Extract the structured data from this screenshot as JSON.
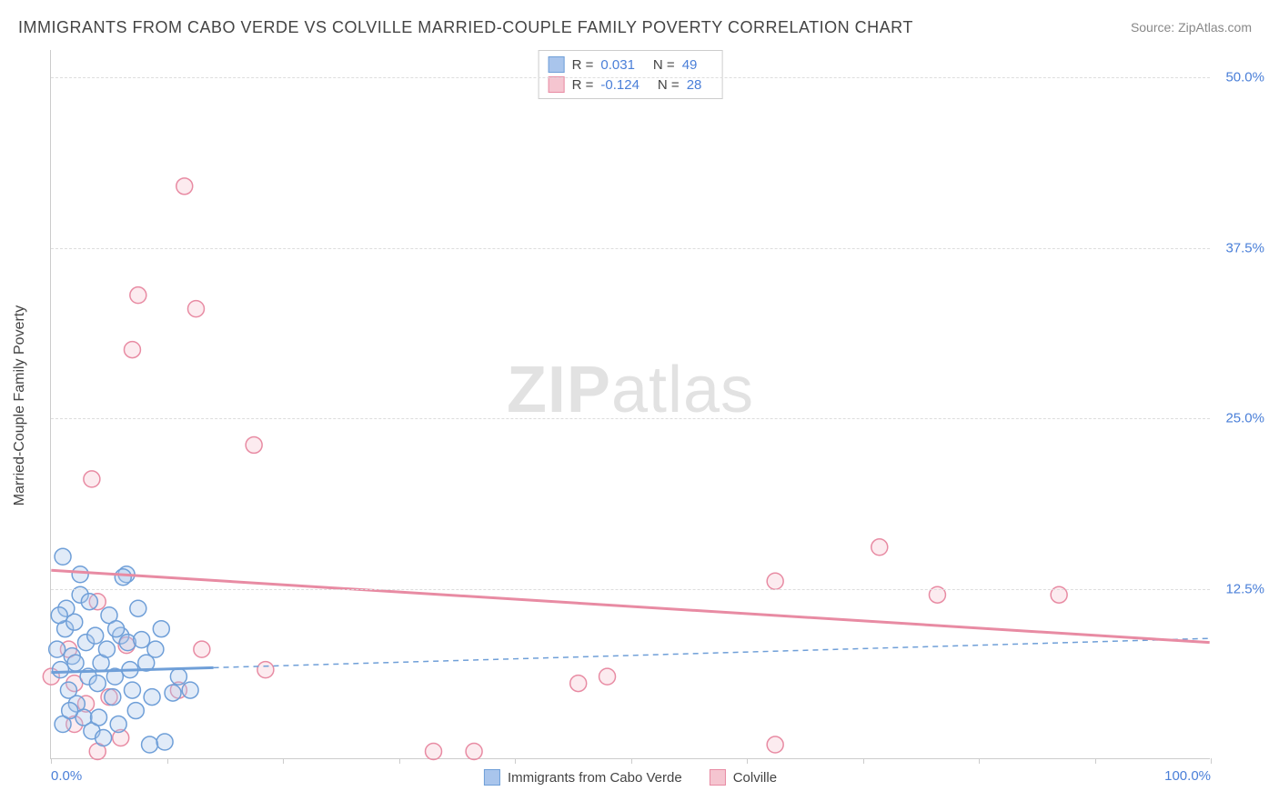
{
  "title": "IMMIGRANTS FROM CABO VERDE VS COLVILLE MARRIED-COUPLE FAMILY POVERTY CORRELATION CHART",
  "source": "Source: ZipAtlas.com",
  "watermark_bold": "ZIP",
  "watermark_light": "atlas",
  "y_axis_title": "Married-Couple Family Poverty",
  "chart": {
    "type": "scatter",
    "xlim": [
      0,
      100
    ],
    "ylim": [
      0,
      52
    ],
    "x_ticks": [
      0,
      10,
      20,
      30,
      40,
      50,
      60,
      70,
      80,
      90,
      100
    ],
    "x_tick_labels": {
      "0": "0.0%",
      "100": "100.0%"
    },
    "y_gridlines": [
      12.5,
      25.0,
      37.5,
      50.0
    ],
    "y_tick_labels": [
      "12.5%",
      "25.0%",
      "37.5%",
      "50.0%"
    ],
    "background_color": "#ffffff",
    "grid_color": "#dddddd",
    "axis_color": "#cccccc",
    "tick_label_color": "#4a7fd8",
    "title_fontsize": 18,
    "label_fontsize": 16,
    "marker_radius": 9,
    "marker_stroke_width": 1.5,
    "marker_fill_opacity": 0.35,
    "trend_line_width_solid": 3,
    "trend_line_width_dashed": 1.5,
    "series": [
      {
        "name": "Immigrants from Cabo Verde",
        "color_fill": "#a9c5ec",
        "color_stroke": "#6f9fd8",
        "R": "0.031",
        "N": "49",
        "trend": {
          "y_start": 6.3,
          "y_end": 8.8,
          "solid_until_x": 14,
          "dashed": true
        },
        "points": [
          [
            1.0,
            14.8
          ],
          [
            0.5,
            8.0
          ],
          [
            0.8,
            6.5
          ],
          [
            1.2,
            9.5
          ],
          [
            1.5,
            5.0
          ],
          [
            1.8,
            7.5
          ],
          [
            2.0,
            10.0
          ],
          [
            2.2,
            4.0
          ],
          [
            2.5,
            12.0
          ],
          [
            2.8,
            3.0
          ],
          [
            3.0,
            8.5
          ],
          [
            3.2,
            6.0
          ],
          [
            3.5,
            2.0
          ],
          [
            3.8,
            9.0
          ],
          [
            4.0,
            5.5
          ],
          [
            4.3,
            7.0
          ],
          [
            4.5,
            1.5
          ],
          [
            4.8,
            8.0
          ],
          [
            5.0,
            10.5
          ],
          [
            5.3,
            4.5
          ],
          [
            5.5,
            6.0
          ],
          [
            5.8,
            2.5
          ],
          [
            6.0,
            9.0
          ],
          [
            6.5,
            13.5
          ],
          [
            6.6,
            8.5
          ],
          [
            7.0,
            5.0
          ],
          [
            7.5,
            11.0
          ],
          [
            8.5,
            1.0
          ],
          [
            8.7,
            4.5
          ],
          [
            9.0,
            8.0
          ],
          [
            9.8,
            1.2
          ],
          [
            10.5,
            4.8
          ],
          [
            11.0,
            6.0
          ],
          [
            12.0,
            5.0
          ],
          [
            2.5,
            13.5
          ],
          [
            6.2,
            13.3
          ],
          [
            7.8,
            8.7
          ],
          [
            1.0,
            2.5
          ],
          [
            1.3,
            11.0
          ],
          [
            1.6,
            3.5
          ],
          [
            0.7,
            10.5
          ],
          [
            2.1,
            7.0
          ],
          [
            3.3,
            11.5
          ],
          [
            4.1,
            3.0
          ],
          [
            5.6,
            9.5
          ],
          [
            6.8,
            6.5
          ],
          [
            7.3,
            3.5
          ],
          [
            8.2,
            7.0
          ],
          [
            9.5,
            9.5
          ]
        ]
      },
      {
        "name": "Colville",
        "color_fill": "#f5c5d0",
        "color_stroke": "#e88ba3",
        "R": "-0.124",
        "N": "28",
        "trend": {
          "y_start": 13.8,
          "y_end": 8.5,
          "solid_until_x": 100,
          "dashed": false
        },
        "points": [
          [
            11.5,
            42.0
          ],
          [
            3.5,
            20.5
          ],
          [
            7.5,
            34.0
          ],
          [
            12.5,
            33.0
          ],
          [
            7.0,
            30.0
          ],
          [
            17.5,
            23.0
          ],
          [
            4.0,
            11.5
          ],
          [
            6.5,
            8.3
          ],
          [
            13.0,
            8.0
          ],
          [
            5.0,
            4.5
          ],
          [
            11.0,
            5.0
          ],
          [
            18.5,
            6.5
          ],
          [
            33.0,
            0.5
          ],
          [
            36.5,
            0.5
          ],
          [
            45.5,
            5.5
          ],
          [
            48.0,
            6.0
          ],
          [
            62.5,
            1.0
          ],
          [
            71.5,
            15.5
          ],
          [
            62.5,
            13.0
          ],
          [
            76.5,
            12.0
          ],
          [
            87.0,
            12.0
          ],
          [
            2.0,
            5.5
          ],
          [
            1.5,
            8.0
          ],
          [
            0.0,
            6.0
          ],
          [
            3.0,
            4.0
          ],
          [
            2.0,
            2.5
          ],
          [
            4.0,
            0.5
          ],
          [
            6.0,
            1.5
          ]
        ]
      }
    ]
  },
  "legend_top_labels": {
    "R": "R =",
    "N": "N ="
  },
  "legend_bottom": [
    {
      "label": "Immigrants from Cabo Verde",
      "fill": "#a9c5ec",
      "stroke": "#6f9fd8"
    },
    {
      "label": "Colville",
      "fill": "#f5c5d0",
      "stroke": "#e88ba3"
    }
  ]
}
